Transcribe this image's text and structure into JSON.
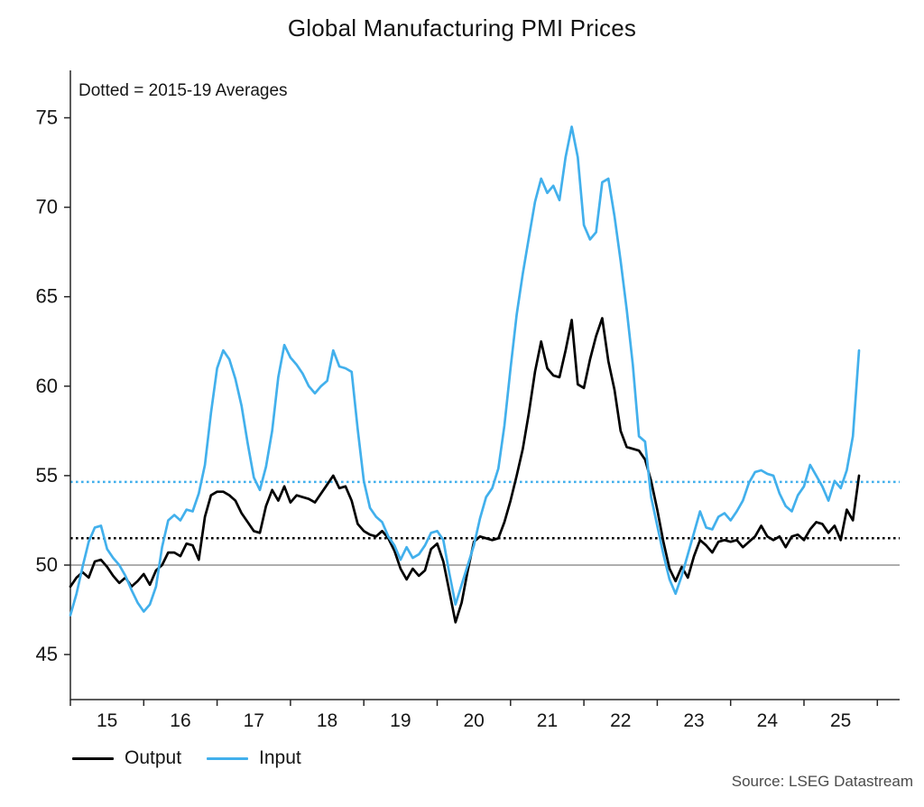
{
  "page": {
    "title": "Global Manufacturing PMI Prices",
    "annotation": "Dotted = 2015-19 Averages",
    "source": "Source: LSEG Datastream"
  },
  "chart_data": {
    "type": "line",
    "title": "Global Manufacturing PMI Prices",
    "annotation": "Dotted = 2015-19 Averages",
    "source": "Source: LSEG Datastream",
    "frequency": "monthly",
    "x_start": "2015-01",
    "x_end": "2025-10",
    "x_tick_labels": [
      "15",
      "16",
      "17",
      "18",
      "19",
      "20",
      "21",
      "22",
      "23",
      "24",
      "25"
    ],
    "y_ticks": [
      45,
      50,
      55,
      60,
      65,
      70,
      75
    ],
    "ylim": [
      42.5,
      77.6
    ],
    "reference_line": 50,
    "grid": false,
    "legend_position": "bottom-left",
    "axis_color": "#262626",
    "reference_line_color": "#7d7d7d",
    "series": [
      {
        "name": "Output",
        "color": "#000000",
        "average_2015_19": 51.5,
        "values": [
          48.8,
          49.3,
          49.6,
          49.3,
          50.2,
          50.3,
          49.9,
          49.4,
          49.0,
          49.3,
          48.8,
          49.1,
          49.5,
          48.9,
          49.7,
          50.0,
          50.7,
          50.7,
          50.5,
          51.2,
          51.1,
          50.3,
          52.7,
          53.9,
          54.1,
          54.1,
          53.9,
          53.6,
          52.9,
          52.4,
          51.9,
          51.8,
          53.3,
          54.2,
          53.6,
          54.4,
          53.5,
          53.9,
          53.8,
          53.7,
          53.5,
          54.0,
          54.5,
          55.0,
          54.3,
          54.4,
          53.6,
          52.3,
          51.9,
          51.7,
          51.6,
          51.9,
          51.5,
          50.8,
          49.8,
          49.2,
          49.8,
          49.4,
          49.7,
          50.9,
          51.2,
          50.2,
          48.5,
          46.8,
          47.9,
          49.7,
          51.3,
          51.6,
          51.5,
          51.4,
          51.5,
          52.4,
          53.6,
          55.0,
          56.5,
          58.5,
          60.8,
          62.5,
          61.0,
          60.6,
          60.5,
          62.0,
          63.7,
          60.1,
          59.9,
          61.5,
          62.8,
          63.8,
          61.4,
          59.8,
          57.5,
          56.6,
          56.5,
          56.4,
          55.9,
          54.7,
          53.1,
          51.3,
          49.8,
          49.1,
          49.9,
          49.3,
          50.5,
          51.4,
          51.1,
          50.7,
          51.3,
          51.4,
          51.3,
          51.4,
          51.0,
          51.3,
          51.6,
          52.2,
          51.6,
          51.4,
          51.6,
          51.0,
          51.6,
          51.7,
          51.4,
          52.0,
          52.4,
          52.3,
          51.8,
          52.2,
          51.4,
          53.1,
          52.5,
          55.0
        ]
      },
      {
        "name": "Input",
        "color": "#42b0ec",
        "average_2015_19": 54.65,
        "values": [
          47.2,
          48.4,
          49.9,
          51.3,
          52.1,
          52.2,
          50.9,
          50.4,
          50.0,
          49.4,
          48.6,
          47.9,
          47.4,
          47.8,
          48.8,
          51.0,
          52.5,
          52.8,
          52.5,
          53.1,
          53.0,
          54.0,
          55.6,
          58.5,
          61.0,
          62.0,
          61.5,
          60.4,
          58.9,
          56.8,
          54.9,
          54.2,
          55.5,
          57.5,
          60.5,
          62.3,
          61.6,
          61.2,
          60.7,
          60.0,
          59.6,
          60.0,
          60.3,
          62.0,
          61.1,
          61.0,
          60.8,
          57.6,
          54.7,
          53.2,
          52.7,
          52.4,
          51.6,
          51.1,
          50.3,
          51.0,
          50.4,
          50.6,
          51.1,
          51.8,
          51.9,
          51.4,
          49.5,
          47.8,
          48.9,
          50.0,
          51.1,
          52.6,
          53.8,
          54.3,
          55.4,
          57.8,
          61.0,
          64.0,
          66.3,
          68.3,
          70.3,
          71.6,
          70.8,
          71.2,
          70.4,
          72.8,
          74.5,
          72.8,
          69.0,
          68.2,
          68.6,
          71.4,
          71.6,
          69.5,
          67.0,
          64.3,
          61.2,
          57.2,
          56.9,
          53.8,
          52.2,
          50.6,
          49.2,
          48.4,
          49.4,
          50.6,
          51.8,
          53.0,
          52.1,
          52.0,
          52.7,
          52.9,
          52.5,
          53.0,
          53.6,
          54.6,
          55.2,
          55.3,
          55.1,
          55.0,
          54.0,
          53.3,
          53.0,
          53.9,
          54.4,
          55.6,
          55.0,
          54.4,
          53.6,
          54.7,
          54.3,
          55.3,
          57.2,
          62.0
        ]
      }
    ]
  }
}
